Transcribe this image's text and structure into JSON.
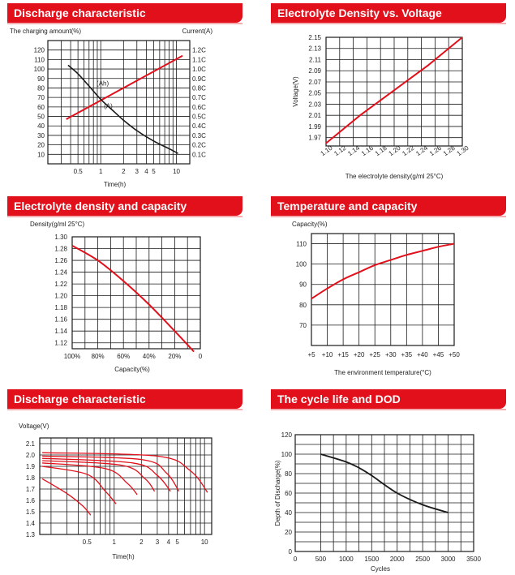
{
  "colors": {
    "header": "#e1101b",
    "red_line": "#e1101b",
    "black_line": "#1a1a1a"
  },
  "chart_data": [
    {
      "id": "discharge1",
      "type": "line",
      "title": "Discharge characteristic",
      "ylabel_left": "The charging amount(%)",
      "ylabel_right": "Current(A)",
      "xlabel": "Time(h)",
      "x_scale": "log",
      "xlim": [
        0.2,
        15
      ],
      "x_ticks": [
        "0.5",
        "1",
        "2",
        "3",
        "4",
        "5",
        "10"
      ],
      "y_ticks": [
        "120",
        "110",
        "100",
        "90",
        "80",
        "70",
        "60",
        "50",
        "40",
        "30",
        "20",
        "10"
      ],
      "y_ticks_right": [
        "1.2C",
        "1.1C",
        "1.0C",
        "0.9C",
        "0.8C",
        "0.7C",
        "0.6C",
        "0.5C",
        "0.4C",
        "0.3C",
        "0.2C",
        "0.1C"
      ],
      "ylim": [
        0,
        130
      ],
      "series": [
        {
          "name": "(Ah)",
          "color": "#e1101b",
          "x": [
            0.35,
            12
          ],
          "y": [
            47,
            114
          ]
        },
        {
          "name": "(A)",
          "color": "#1a1a1a",
          "x": [
            0.37,
            0.5,
            0.7,
            1,
            1.5,
            2,
            3,
            5,
            8,
            10.5
          ],
          "y": [
            104,
            95,
            82,
            68,
            55,
            46,
            35,
            24,
            16,
            11
          ]
        }
      ]
    },
    {
      "id": "density_voltage",
      "type": "line",
      "title": "Electrolyte Density vs. Voltage",
      "ylabel": "Voltage(V)",
      "xlabel": "The electrolyte density(g/ml 25°C)",
      "x_ticks": [
        "1.10",
        "1.12",
        "1.14",
        "1.16",
        "1.18",
        "1.20",
        "1.22",
        "1.24",
        "1.26",
        "1.28",
        "1.30"
      ],
      "y_ticks": [
        "2.15",
        "2.13",
        "2.11",
        "2.09",
        "2.07",
        "2.05",
        "2.03",
        "2.01",
        "1.99",
        "1.97"
      ],
      "xlim": [
        1.1,
        1.3
      ],
      "ylim": [
        1.955,
        2.15
      ],
      "series": [
        {
          "name": "",
          "color": "#e1101b",
          "x": [
            1.1,
            1.15,
            1.2,
            1.25,
            1.3
          ],
          "y": [
            1.96,
            2.01,
            2.055,
            2.1,
            2.15
          ]
        }
      ]
    },
    {
      "id": "density_capacity",
      "type": "line",
      "title": "Electrolyte density and capacity",
      "ylabel": "Density(g/ml 25°C)",
      "xlabel": "Capacity(%)",
      "x_ticks": [
        "100%",
        "80%",
        "60%",
        "40%",
        "20%",
        "0"
      ],
      "y_ticks": [
        "1.30",
        "1.28",
        "1.26",
        "1.24",
        "1.22",
        "1.20",
        "1.18",
        "1.16",
        "1.14",
        "1.12"
      ],
      "xlim": [
        100,
        0
      ],
      "ylim": [
        1.11,
        1.3
      ],
      "series": [
        {
          "name": "",
          "color": "#e1101b",
          "x": [
            100,
            80,
            60,
            40,
            20,
            5
          ],
          "y": [
            1.285,
            1.26,
            1.225,
            1.185,
            1.14,
            1.105
          ]
        }
      ]
    },
    {
      "id": "temp_capacity",
      "type": "line",
      "title": "Temperature and capacity",
      "ylabel": "Capacity(%)",
      "xlabel": "The environment temperature(°C)",
      "x_ticks": [
        "+5",
        "+10",
        "+15",
        "+20",
        "+25",
        "+30",
        "+35",
        "+40",
        "+45",
        "+50"
      ],
      "y_ticks": [
        "110",
        "100",
        "90",
        "80",
        "70"
      ],
      "xlim": [
        5,
        50
      ],
      "ylim": [
        60,
        115
      ],
      "series": [
        {
          "name": "",
          "color": "#e1101b",
          "x": [
            5,
            10,
            15,
            20,
            25,
            30,
            35,
            40,
            45,
            50
          ],
          "y": [
            83,
            88,
            92.5,
            96,
            99.5,
            102,
            104.5,
            106.5,
            108.5,
            110
          ]
        }
      ]
    },
    {
      "id": "discharge2",
      "type": "line",
      "title": "Discharge characteristic",
      "ylabel": "Voltage(V)",
      "xlabel": "Time(h)",
      "x_scale": "log",
      "xlim": [
        0.15,
        12
      ],
      "x_ticks": [
        "0.5",
        "1",
        "2",
        "3",
        "4",
        "5",
        "10"
      ],
      "y_ticks": [
        "2.1",
        "2.0",
        "1.9",
        "1.8",
        "1.7",
        "1.6",
        "1.5",
        "1.4",
        "1.3"
      ],
      "ylim": [
        1.3,
        2.15
      ],
      "series": [
        {
          "name": "",
          "color": "#e1101b",
          "x": [
            0.16,
            0.3,
            0.45,
            0.55
          ],
          "y": [
            1.79,
            1.66,
            1.55,
            1.47
          ]
        },
        {
          "name": "",
          "color": "#e1101b",
          "x": [
            0.16,
            0.5,
            0.8,
            1.05
          ],
          "y": [
            1.9,
            1.83,
            1.68,
            1.57
          ]
        },
        {
          "name": "",
          "color": "#e1101b",
          "x": [
            0.16,
            0.8,
            1.4,
            1.8
          ],
          "y": [
            1.93,
            1.88,
            1.75,
            1.65
          ]
        },
        {
          "name": "",
          "color": "#e1101b",
          "x": [
            0.16,
            1.2,
            2.2,
            2.8
          ],
          "y": [
            1.95,
            1.91,
            1.79,
            1.68
          ]
        },
        {
          "name": "",
          "color": "#e1101b",
          "x": [
            0.16,
            1.6,
            3.0,
            4.2
          ],
          "y": [
            1.97,
            1.93,
            1.82,
            1.68
          ]
        },
        {
          "name": "",
          "color": "#e1101b",
          "x": [
            0.16,
            2.0,
            3.8,
            5.2
          ],
          "y": [
            1.99,
            1.96,
            1.84,
            1.68
          ]
        },
        {
          "name": "",
          "color": "#e1101b",
          "x": [
            0.16,
            3.0,
            7,
            10.8
          ],
          "y": [
            2.02,
            1.99,
            1.86,
            1.67
          ]
        }
      ]
    },
    {
      "id": "cycle_dod",
      "type": "line",
      "title": "The cycle life and DOD",
      "ylabel": "Depth of Discharge(%)",
      "xlabel": "Cycles",
      "x_ticks": [
        "0",
        "500",
        "1000",
        "1500",
        "2000",
        "2500",
        "3000",
        "3500"
      ],
      "y_ticks": [
        "120",
        "100",
        "80",
        "60",
        "40",
        "20",
        "0"
      ],
      "xlim": [
        0,
        3500
      ],
      "ylim": [
        0,
        120
      ],
      "series": [
        {
          "name": "",
          "color": "#1a1a1a",
          "x": [
            500,
            1000,
            1250,
            1500,
            2000,
            2500,
            3000
          ],
          "y": [
            100,
            92,
            86,
            78,
            60,
            48,
            40
          ]
        }
      ]
    }
  ]
}
